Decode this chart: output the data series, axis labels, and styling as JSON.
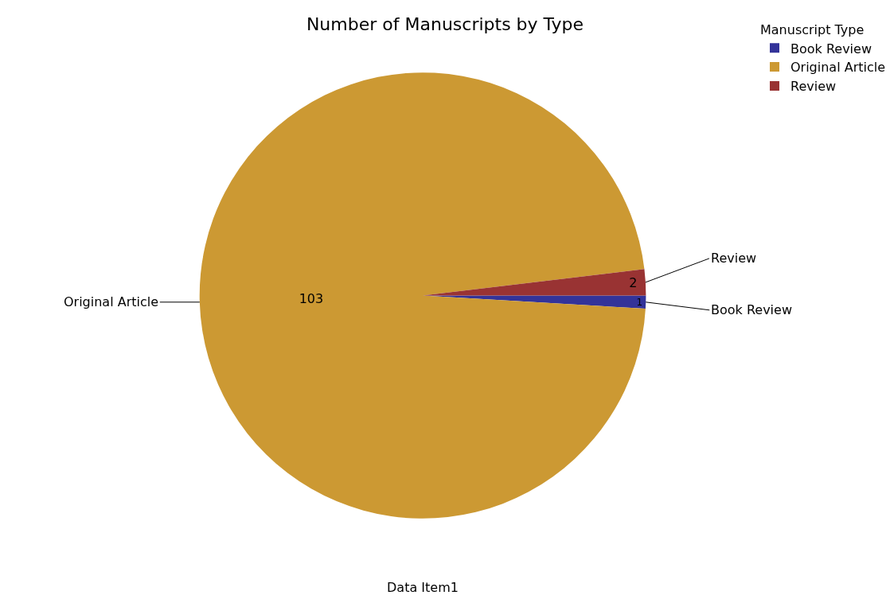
{
  "chart_data": {
    "type": "pie",
    "title": "Number of Manuscripts by Type",
    "xlabel": "Data Item1",
    "legend_title": "Manuscript Type",
    "categories": [
      "Book Review",
      "Original Article",
      "Review"
    ],
    "values": [
      1,
      103,
      2
    ],
    "colors": [
      "#333399",
      "#cc9933",
      "#993333"
    ],
    "data_labels": true,
    "legend": "top right"
  }
}
